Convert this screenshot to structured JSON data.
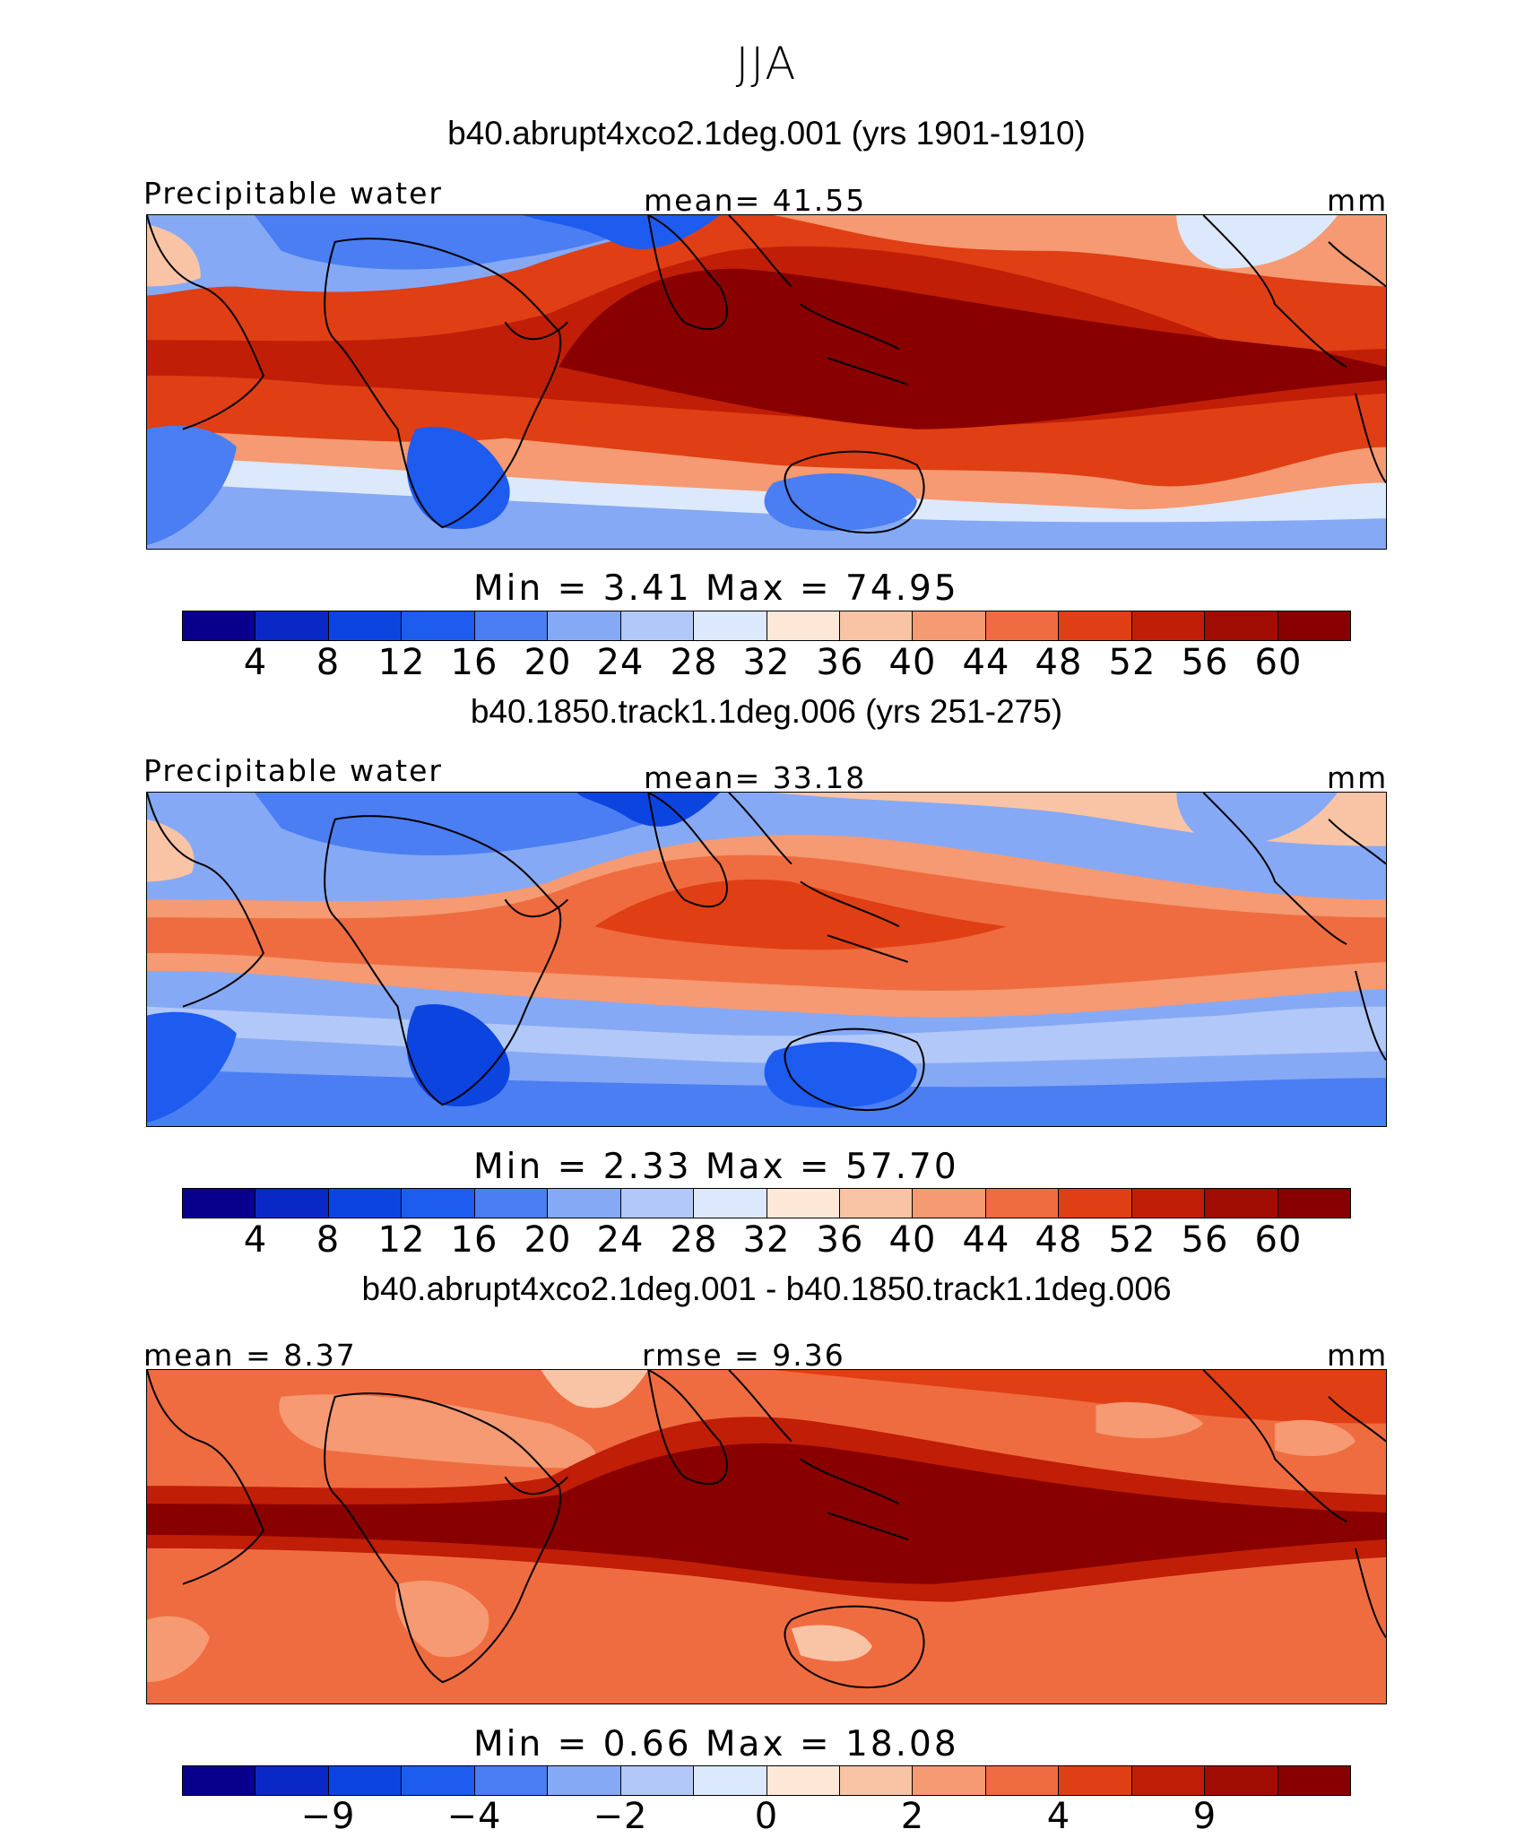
{
  "title": "JJA",
  "colors": [
    "#08008c",
    "#0a28c6",
    "#0c44e0",
    "#1e5cf0",
    "#4a7ef2",
    "#86a9f5",
    "#b2c8f8",
    "#dce8fb",
    "#fde8d8",
    "#f9c4a6",
    "#f59a72",
    "#ef6c40",
    "#e03e14",
    "#c01e06",
    "#a00c02",
    "#880000"
  ],
  "panels": [
    {
      "case_title": "b40.abrupt4xco2.1deg.001 (yrs 1901-1910)",
      "left_label": "Precipitable water",
      "center_label": "mean=  41.55",
      "right_label": "mm",
      "minmax": "Min =    3.41  Max =   74.95",
      "ticks": [
        "4",
        "8",
        "12",
        "16",
        "20",
        "24",
        "28",
        "32",
        "36",
        "40",
        "44",
        "48",
        "52",
        "56",
        "60"
      ]
    },
    {
      "case_title": "b40.1850.track1.1deg.006 (yrs 251-275)",
      "left_label": "Precipitable water",
      "center_label": "mean=  33.18",
      "right_label": "mm",
      "minmax": "Min =    2.33  Max =   57.70",
      "ticks": [
        "4",
        "8",
        "12",
        "16",
        "20",
        "24",
        "28",
        "32",
        "36",
        "40",
        "44",
        "48",
        "52",
        "56",
        "60"
      ]
    },
    {
      "case_title": "b40.abrupt4xco2.1deg.001 - b40.1850.track1.1deg.006",
      "left_label": "mean =   8.37",
      "center_label": "rmse =   9.36",
      "right_label": "mm",
      "minmax": "Min =    0.66  Max =   18.08",
      "ticks": [
        "−9",
        "−4",
        "−2",
        "0",
        "2",
        "4",
        "9"
      ]
    }
  ]
}
